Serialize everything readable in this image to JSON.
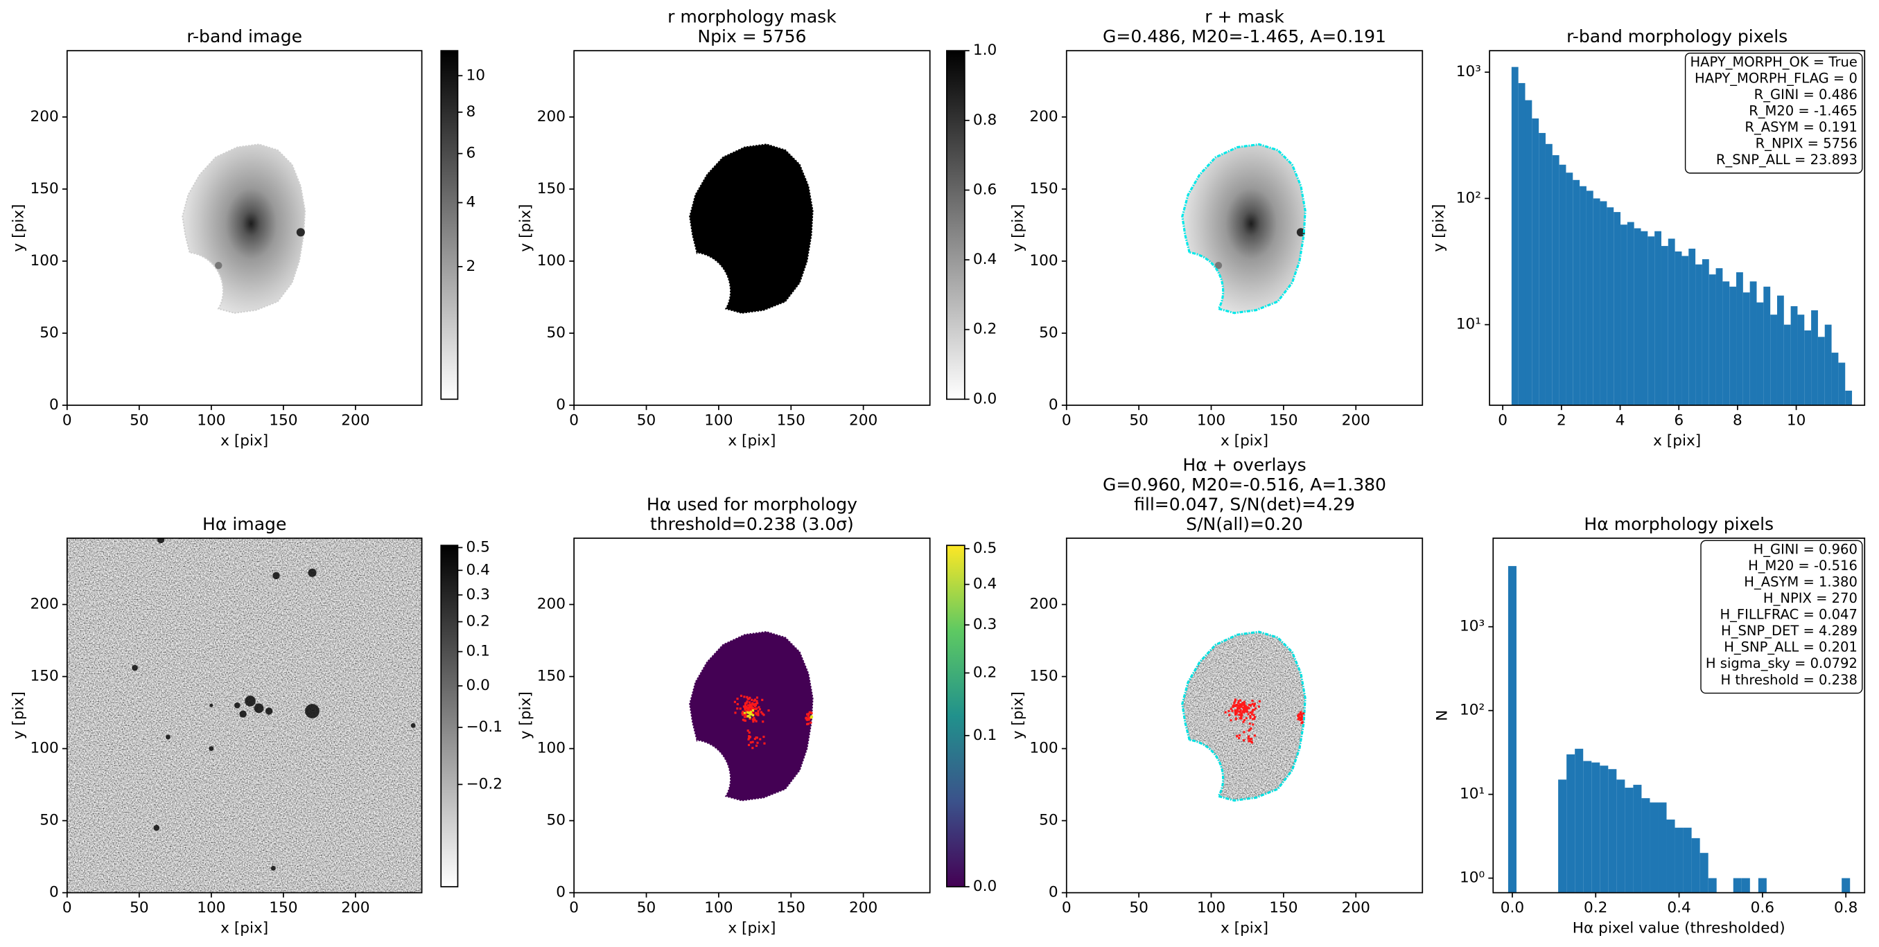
{
  "chart_data": [
    {
      "type": "image",
      "title": [
        "r-band image"
      ],
      "xlabel": "x [pix]",
      "ylabel": "y [pix]",
      "xlim": [
        0,
        246
      ],
      "ylim": [
        0,
        246
      ],
      "xticks": [
        0,
        50,
        100,
        150,
        200
      ],
      "yticks": [
        0,
        50,
        100,
        150,
        200
      ],
      "colorbar": {
        "cmap": "gray_r",
        "stretch": "sqrt",
        "clim": [
          0.04,
          11.5
        ],
        "ticks": [
          2,
          4,
          6,
          8,
          10
        ]
      }
    },
    {
      "type": "image",
      "title": [
        "r morphology mask",
        "Npix = 5756"
      ],
      "xlabel": "x [pix]",
      "ylabel": "y [pix]",
      "xlim": [
        0,
        246
      ],
      "ylim": [
        0,
        246
      ],
      "xticks": [
        0,
        50,
        100,
        150,
        200
      ],
      "yticks": [
        0,
        50,
        100,
        150,
        200
      ],
      "colorbar": {
        "cmap": "gray_r",
        "stretch": "linear",
        "clim": [
          0,
          1
        ],
        "ticks": [
          {
            "value": 0,
            "label": "0.0"
          },
          0.2,
          0.4,
          0.6,
          0.8,
          {
            "value": 1,
            "label": "1.0"
          }
        ]
      }
    },
    {
      "type": "image",
      "title": [
        "r + mask",
        "G=0.486, M20=-1.465, A=0.191"
      ],
      "xlabel": "x [pix]",
      "ylabel": "y [pix]",
      "xlim": [
        0,
        246
      ],
      "ylim": [
        0,
        246
      ],
      "xticks": [
        0,
        50,
        100,
        150,
        200
      ],
      "yticks": [
        0,
        50,
        100,
        150,
        200
      ]
    },
    {
      "type": "histogram",
      "title": [
        "r-band morphology pixels"
      ],
      "xlabel": "x [pix]",
      "ylabel": "y [pix]",
      "ylog": true,
      "xlim": [
        -0.45,
        12.33
      ],
      "ylim": [
        2.3,
        1480
      ],
      "xticks": [
        0,
        2,
        4,
        6,
        8,
        10
      ],
      "yticks": [
        {
          "value": 10,
          "label": "10¹"
        },
        {
          "value": 100,
          "label": "10²"
        },
        {
          "value": 1000,
          "label": "10³"
        }
      ],
      "color": "#1f77b4",
      "bins": [
        0.3,
        0.532,
        0.764,
        0.996,
        1.228,
        1.46,
        1.692,
        1.924,
        2.156,
        2.388,
        2.62,
        2.852,
        3.084,
        3.316,
        3.548,
        3.78,
        4.012,
        4.244,
        4.476,
        4.708,
        4.94,
        5.172,
        5.404,
        5.636,
        5.868,
        6.1,
        6.332,
        6.564,
        6.796,
        7.028,
        7.26,
        7.492,
        7.724,
        7.956,
        8.188,
        8.42,
        8.652,
        8.884,
        9.116,
        9.348,
        9.58,
        9.812,
        10.044,
        10.276,
        10.508,
        10.74,
        10.972,
        11.204,
        11.436,
        11.668,
        11.9
      ],
      "values": [
        1100,
        820,
        600,
        430,
        330,
        270,
        220,
        185,
        160,
        140,
        125,
        115,
        100,
        95,
        85,
        78,
        62,
        65,
        58,
        55,
        50,
        55,
        42,
        48,
        38,
        35,
        40,
        30,
        33,
        25,
        28,
        22,
        20,
        26,
        18,
        22,
        15,
        20,
        12,
        17,
        10,
        14,
        12,
        9,
        13,
        8,
        10,
        6,
        5,
        3
      ],
      "annotation": [
        "HAPY_MORPH_OK = True",
        "HAPY_MORPH_FLAG = 0",
        "R_GINI = 0.486",
        "R_M20 = -1.465",
        "R_ASYM = 0.191",
        "R_NPIX = 5756",
        "R_SNP_ALL = 23.893"
      ]
    },
    {
      "type": "image",
      "title": [
        "Hα image"
      ],
      "xlabel": "x [pix]",
      "ylabel": "y [pix]",
      "xlim": [
        0,
        246
      ],
      "ylim": [
        0,
        246
      ],
      "xticks": [
        0,
        50,
        100,
        150,
        200
      ],
      "yticks": [
        0,
        50,
        100,
        150,
        200
      ],
      "colorbar": {
        "cmap": "gray_r",
        "stretch": "sqrt",
        "clim": [
          -0.27,
          0.51
        ],
        "ticks": [
          {
            "value": -0.2,
            "label": "−0.2"
          },
          {
            "value": -0.1,
            "label": "−0.1"
          },
          {
            "value": 0,
            "label": "0.0"
          },
          0.1,
          0.2,
          0.3,
          0.4,
          0.5
        ]
      }
    },
    {
      "type": "image",
      "title": [
        "Hα used for morphology",
        "threshold=0.238 (3.0σ)"
      ],
      "xlabel": "x [pix]",
      "ylabel": "y [pix]",
      "xlim": [
        0,
        246
      ],
      "ylim": [
        0,
        246
      ],
      "xticks": [
        0,
        50,
        100,
        150,
        200
      ],
      "yticks": [
        0,
        50,
        100,
        150,
        200
      ],
      "colorbar": {
        "cmap": "viridis",
        "stretch": "sqrt",
        "clim": [
          0,
          0.51
        ],
        "ticks": [
          {
            "value": 0,
            "label": "0.0"
          },
          0.1,
          0.2,
          0.3,
          0.4,
          0.5
        ]
      }
    },
    {
      "type": "image",
      "title": [
        "Hα + overlays",
        "G=0.960, M20=-0.516, A=1.380",
        "fill=0.047, S/N(det)=4.29",
        "S/N(all)=0.20"
      ],
      "xlabel": "x [pix]",
      "ylabel": "y [pix]",
      "xlim": [
        0,
        246
      ],
      "ylim": [
        0,
        246
      ],
      "xticks": [
        0,
        50,
        100,
        150,
        200
      ],
      "yticks": [
        0,
        50,
        100,
        150,
        200
      ]
    },
    {
      "type": "histogram",
      "title": [
        "Hα morphology pixels"
      ],
      "xlabel": "Hα pixel value (thresholded)",
      "ylabel": "N",
      "ylog": true,
      "xlim": [
        -0.046,
        0.845
      ],
      "ylim": [
        0.67,
        11400
      ],
      "xticks": [
        {
          "value": 0,
          "label": "0.0"
        },
        0.2,
        0.4,
        0.6,
        0.8
      ],
      "yticks": [
        {
          "value": 1,
          "label": "10⁰"
        },
        {
          "value": 10,
          "label": "10¹"
        },
        {
          "value": 100,
          "label": "10²"
        },
        {
          "value": 1000,
          "label": "10³"
        }
      ],
      "color": "#1f77b4",
      "bins": [
        -0.01,
        0.01,
        0.03,
        0.05,
        0.07,
        0.09,
        0.11,
        0.13,
        0.15,
        0.17,
        0.19,
        0.21,
        0.23,
        0.25,
        0.27,
        0.29,
        0.31,
        0.33,
        0.35,
        0.37,
        0.39,
        0.41,
        0.43,
        0.45,
        0.47,
        0.49,
        0.51,
        0.53,
        0.55,
        0.57,
        0.59,
        0.61,
        0.63,
        0.65,
        0.67,
        0.69,
        0.71,
        0.73,
        0.75,
        0.77,
        0.79,
        0.81
      ],
      "values": [
        5300,
        0,
        0,
        0,
        0,
        0,
        15,
        30,
        35,
        25,
        24,
        22,
        20,
        15,
        12,
        13,
        9,
        8,
        8,
        5,
        4,
        4,
        3,
        2,
        1,
        0,
        0,
        1,
        1,
        0,
        1,
        0,
        0,
        0,
        0,
        0,
        0,
        0,
        0,
        0,
        1
      ],
      "annotation": [
        "H_GINI = 0.960",
        "H_M20 = -0.516",
        "H_ASYM = 1.380",
        "H_NPIX = 270",
        "H_FILLFRAC = 0.047",
        "H_SNP_DET = 4.289",
        "H_SNP_ALL = 0.201",
        "H sigma_sky = 0.0792",
        "H threshold = 0.238"
      ]
    }
  ]
}
